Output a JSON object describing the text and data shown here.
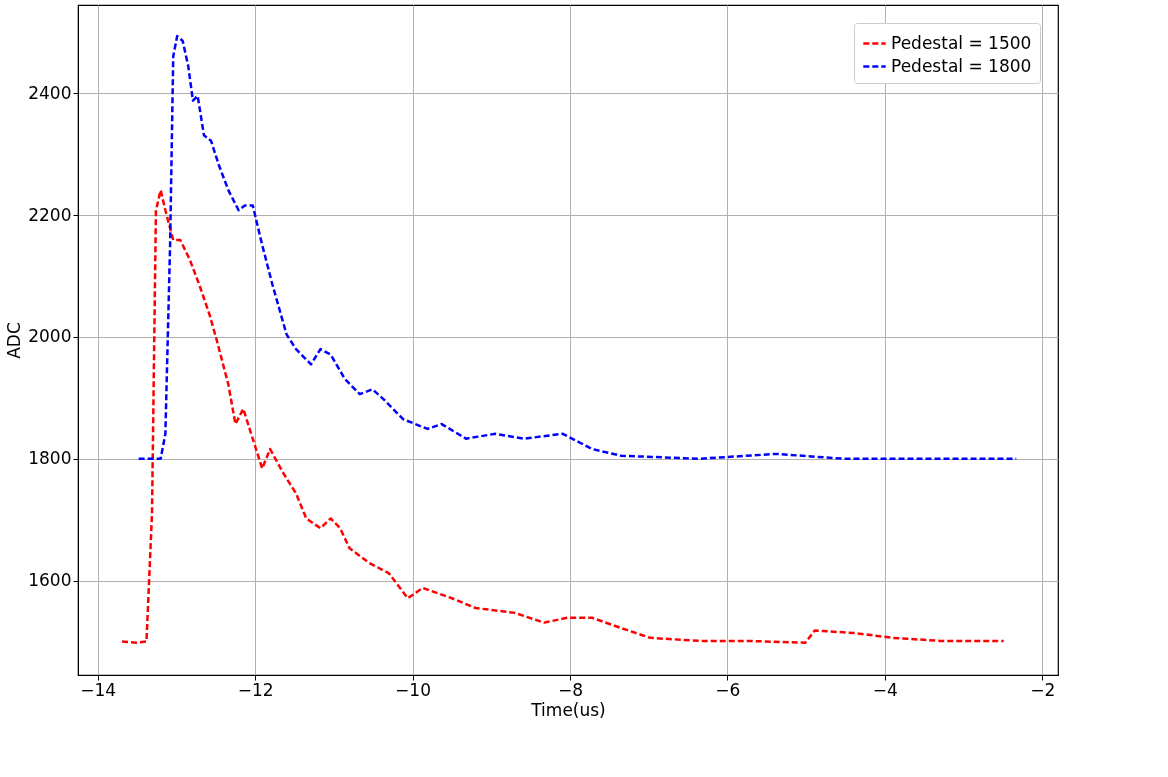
{
  "chart_data": {
    "type": "line",
    "xlabel": "Time(us)",
    "ylabel": "ADC",
    "xlim": [
      -14.25,
      -1.8
    ],
    "xticks": [
      -14,
      -12,
      -10,
      -8,
      -6,
      -4,
      -2
    ],
    "ylim": [
      1445,
      2545
    ],
    "yticks": [
      1600,
      1800,
      2000,
      2200,
      2400
    ],
    "grid": true,
    "legend": "top right",
    "line_style": "dashed",
    "marker": "none",
    "series": [
      {
        "name": "Pedestal = 1500",
        "color": "#ff0000",
        "x": [
          -13.69,
          -13.51,
          -13.38,
          -13.31,
          -13.26,
          -13.2,
          -13.14,
          -13.04,
          -12.95,
          -12.83,
          -12.71,
          -12.58,
          -12.49,
          -12.34,
          -12.25,
          -12.15,
          -12.05,
          -11.91,
          -11.81,
          -11.64,
          -11.48,
          -11.35,
          -11.17,
          -11.04,
          -10.92,
          -10.8,
          -10.55,
          -10.3,
          -10.06,
          -9.87,
          -9.5,
          -9.2,
          -8.7,
          -8.33,
          -8.03,
          -7.72,
          -7.35,
          -6.98,
          -6.36,
          -5.75,
          -5.01,
          -4.89,
          -4.39,
          -3.9,
          -3.29,
          -2.49
        ],
        "values": [
          1500,
          1498,
          1500,
          1710,
          2208,
          2241,
          2208,
          2159,
          2159,
          2127,
          2086,
          2037,
          1996,
          1922,
          1857,
          1882,
          1841,
          1784,
          1816,
          1776,
          1743,
          1702,
          1686,
          1702,
          1686,
          1653,
          1629,
          1612,
          1571,
          1588,
          1571,
          1555,
          1547,
          1531,
          1539,
          1539,
          1522,
          1506,
          1501,
          1501,
          1498,
          1518,
          1514,
          1506,
          1501,
          1501
        ]
      },
      {
        "name": "Pedestal = 1800",
        "color": "#0000ff",
        "x": [
          -13.48,
          -13.2,
          -13.14,
          -13.08,
          -13.04,
          -12.99,
          -12.92,
          -12.85,
          -12.79,
          -12.73,
          -12.65,
          -12.56,
          -12.46,
          -12.34,
          -12.21,
          -12.13,
          -12.03,
          -11.91,
          -11.78,
          -11.6,
          -11.48,
          -11.29,
          -11.17,
          -11.04,
          -10.86,
          -10.67,
          -10.51,
          -10.37,
          -10.12,
          -9.81,
          -9.63,
          -9.32,
          -8.95,
          -8.58,
          -8.09,
          -7.72,
          -7.35,
          -6.36,
          -5.38,
          -4.52,
          -3.29,
          -2.33
        ],
        "values": [
          1800,
          1800,
          1841,
          2151,
          2461,
          2494,
          2486,
          2445,
          2388,
          2396,
          2331,
          2322,
          2282,
          2241,
          2208,
          2216,
          2216,
          2151,
          2086,
          2004,
          1980,
          1955,
          1980,
          1971,
          1931,
          1906,
          1914,
          1898,
          1865,
          1849,
          1857,
          1833,
          1841,
          1833,
          1841,
          1816,
          1805,
          1800,
          1808,
          1800,
          1800,
          1800
        ]
      }
    ]
  }
}
